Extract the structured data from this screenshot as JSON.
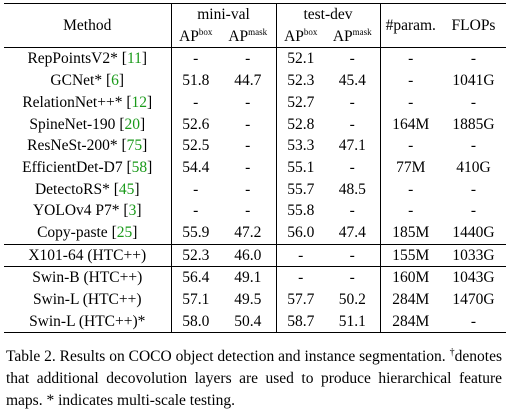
{
  "header": {
    "method": "Method",
    "group_minival": "mini-val",
    "group_testdev": "test-dev",
    "params": "#param.",
    "flops": "FLOPs",
    "ap": "AP",
    "box": "box",
    "mask": "mask"
  },
  "rows": [
    {
      "name": "RepPointsV2*",
      "cite": "11",
      "mv_box": "-",
      "mv_mask": "-",
      "td_box": "52.1",
      "td_mask": "-",
      "params": "-",
      "flops": "-"
    },
    {
      "name": "GCNet*",
      "cite": "6",
      "mv_box": "51.8",
      "mv_mask": "44.7",
      "td_box": "52.3",
      "td_mask": "45.4",
      "params": "-",
      "flops": "1041G"
    },
    {
      "name": "RelationNet++*",
      "cite": "12",
      "mv_box": "-",
      "mv_mask": "-",
      "td_box": "52.7",
      "td_mask": "-",
      "params": "-",
      "flops": "-"
    },
    {
      "name": "SpineNet-190",
      "cite": "20",
      "mv_box": "52.6",
      "mv_mask": "-",
      "td_box": "52.8",
      "td_mask": "-",
      "params": "164M",
      "flops": "1885G"
    },
    {
      "name": "ResNeSt-200*",
      "cite": "75",
      "mv_box": "52.5",
      "mv_mask": "-",
      "td_box": "53.3",
      "td_mask": "47.1",
      "params": "-",
      "flops": "-"
    },
    {
      "name": "EfficientDet-D7",
      "cite": "58",
      "mv_box": "54.4",
      "mv_mask": "-",
      "td_box": "55.1",
      "td_mask": "-",
      "params": "77M",
      "flops": "410G"
    },
    {
      "name": "DetectoRS*",
      "cite": "45",
      "mv_box": "-",
      "mv_mask": "-",
      "td_box": "55.7",
      "td_mask": "48.5",
      "params": "-",
      "flops": "-"
    },
    {
      "name": "YOLOv4 P7*",
      "cite": "3",
      "mv_box": "-",
      "mv_mask": "-",
      "td_box": "55.8",
      "td_mask": "-",
      "params": "-",
      "flops": "-"
    },
    {
      "name": "Copy-paste",
      "cite": "25",
      "mv_box": "55.9",
      "mv_mask": "47.2",
      "td_box": "56.0",
      "td_mask": "47.4",
      "params": "185M",
      "flops": "1440G"
    },
    {
      "name": "X101-64 (HTC++)",
      "mv_box": "52.3",
      "mv_mask": "46.0",
      "td_box": "-",
      "td_mask": "-",
      "params": "155M",
      "flops": "1033G"
    },
    {
      "name": "Swin-B (HTC++)",
      "mv_box": "56.4",
      "mv_mask": "49.1",
      "td_box": "-",
      "td_mask": "-",
      "params": "160M",
      "flops": "1043G"
    },
    {
      "name": "Swin-L (HTC++)",
      "mv_box": "57.1",
      "mv_mask": "49.5",
      "td_box": "57.7",
      "td_mask": "50.2",
      "params": "284M",
      "flops": "1470G"
    },
    {
      "name": "Swin-L (HTC++)*",
      "mv_box": "58.0",
      "mv_mask": "50.4",
      "td_box": "58.7",
      "td_mask": "51.1",
      "params": "284M",
      "flops": "-"
    }
  ],
  "caption": {
    "lead": "Table 2. Results on COCO object detection and instance segmentation.",
    "dagger": "†",
    "rest": "denotes that additional decovolution layers are used to produce hierarchical feature maps. * indicates multi-scale testing."
  }
}
